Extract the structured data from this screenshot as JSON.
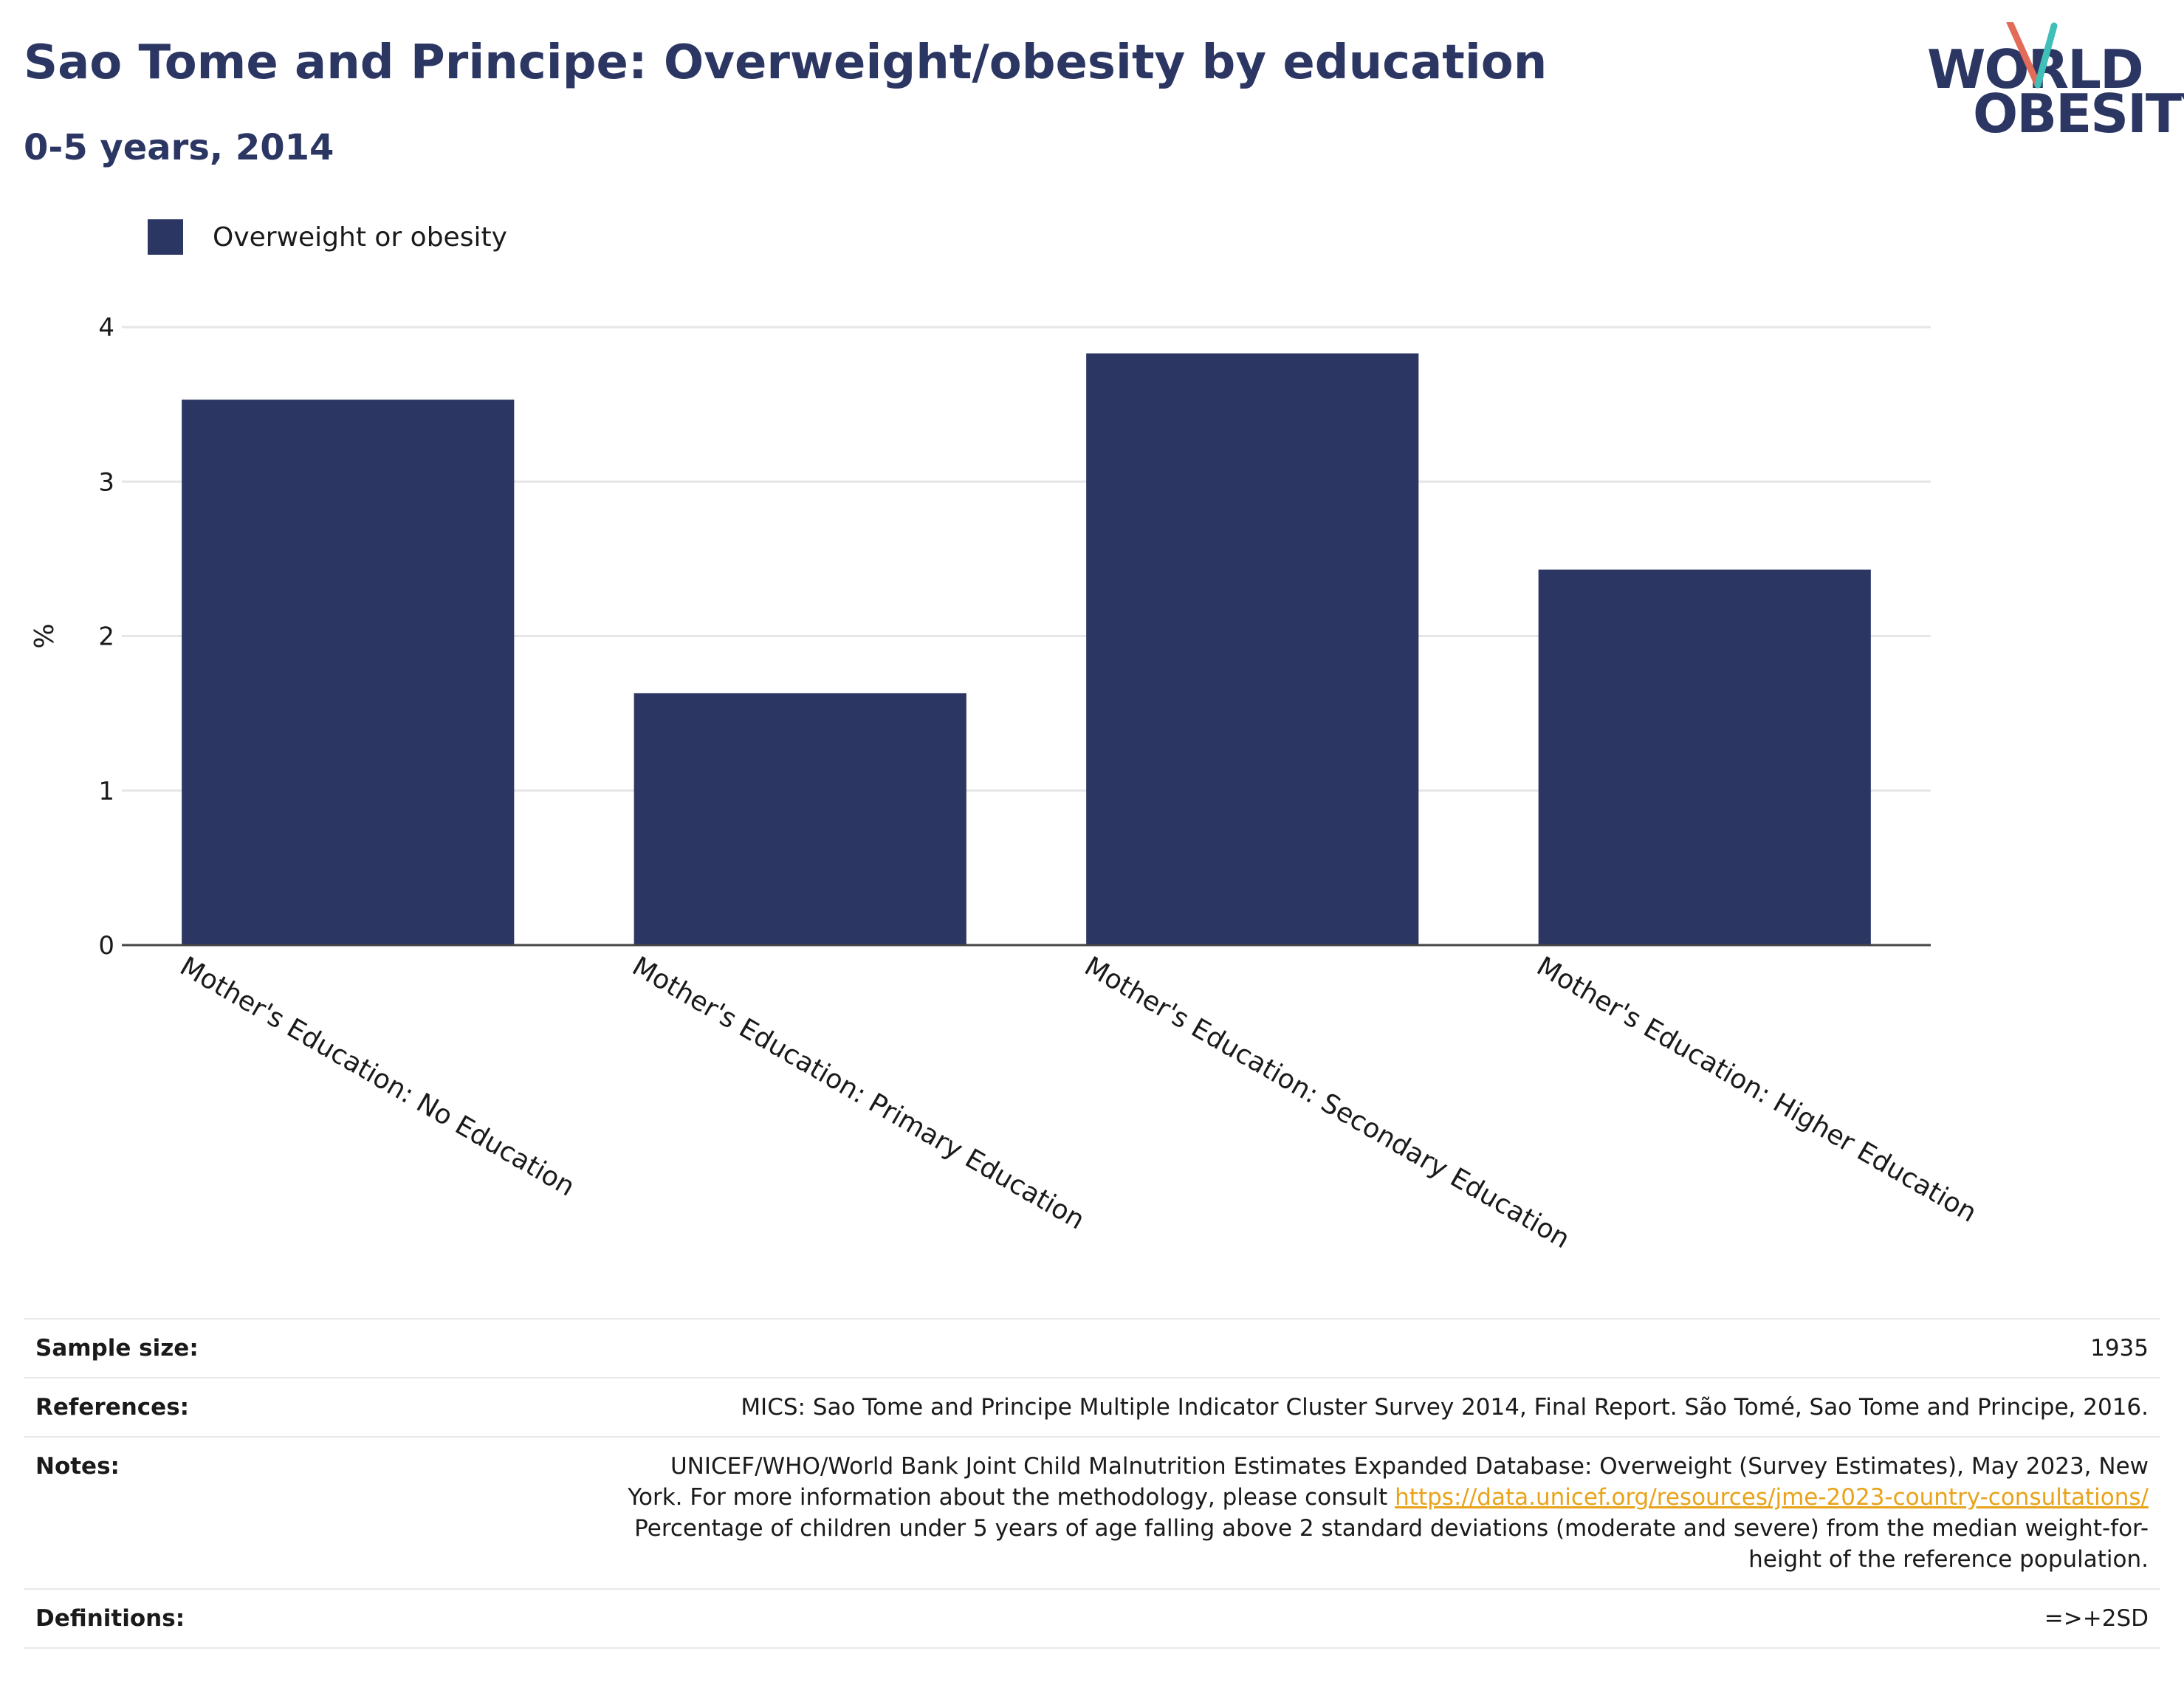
{
  "header": {
    "title": "Sao Tome and Principe: Overweight/obesity by education",
    "subtitle": "0-5 years, 2014"
  },
  "logo": {
    "line1": "WORLD",
    "line2": "OBESITY",
    "colors": {
      "navy": "#2b3663",
      "teal": "#3fbfb8",
      "coral": "#e36b5a"
    }
  },
  "legend": {
    "label": "Overweight or obesity",
    "color": "#2b3663"
  },
  "chart_data": {
    "type": "bar",
    "categories": [
      "Mother's Education: No Education",
      "Mother's Education: Primary Education",
      "Mother's Education: Secondary Education",
      "Mother's Education: Higher Education"
    ],
    "series": [
      {
        "name": "Overweight or obesity",
        "values": [
          3.53,
          1.63,
          3.83,
          2.43
        ],
        "color": "#2b3663"
      }
    ],
    "ylabel": "%",
    "xlabel": "",
    "ylim": [
      0,
      4
    ],
    "yticks": [
      0,
      1,
      2,
      3,
      4
    ],
    "grid": true
  },
  "meta": {
    "sample_size_label": "Sample size:",
    "sample_size_value": "1935",
    "references_label": "References:",
    "references_value": "MICS: Sao Tome and Principe Multiple Indicator Cluster Survey 2014, Final Report. São Tomé, Sao Tome and Principe, 2016.",
    "notes_label": "Notes:",
    "notes_text_1": "UNICEF/WHO/World Bank Joint Child Malnutrition Estimates Expanded Database: Overweight (Survey Estimates), May 2023, New York. For more information about the methodology, please consult ",
    "notes_link": "https://data.unicef.org/resources/jme-2023-country-consultations/",
    "notes_text_2": "Percentage of children under 5 years of age falling above 2 standard deviations (moderate and severe) from the median weight-for-height of the reference population.",
    "definitions_label": "Definitions:",
    "definitions_value": "=>+2SD"
  }
}
